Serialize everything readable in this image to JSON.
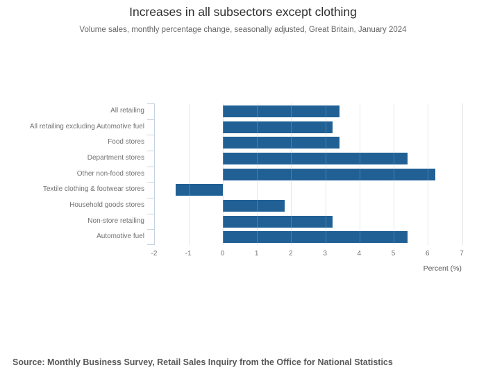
{
  "chart_data": {
    "type": "bar",
    "orientation": "horizontal",
    "title": "Increases in all subsectors except clothing",
    "subtitle": "Volume sales, monthly percentage change, seasonally adjusted, Great Britain, January 2024",
    "categories": [
      "All retailing",
      "All retailing excluding Automotive fuel",
      "Food stores",
      "Department stores",
      "Other non-food stores",
      "Textile clothing & footwear stores",
      "Household goods stores",
      "Non-store retailing",
      "Automotive fuel"
    ],
    "values": [
      3.4,
      3.2,
      3.4,
      5.4,
      6.2,
      -1.4,
      1.8,
      3.2,
      5.4
    ],
    "xlabel": "Percent (%)",
    "ylabel": "",
    "xlim": [
      -2,
      7
    ],
    "xticks": [
      -2,
      -1,
      0,
      1,
      2,
      3,
      4,
      5,
      6,
      7
    ],
    "grid": true,
    "legend": "none",
    "source": "Source: Monthly Business Survey, Retail Sales Inquiry from the Office for National Statistics"
  },
  "colors": {
    "bar": "#206095",
    "grid": "#dde1e5",
    "axis": "#c8d4e0",
    "title_text": "#2e2e2e",
    "muted_text": "#707070",
    "source_text": "#595959"
  }
}
